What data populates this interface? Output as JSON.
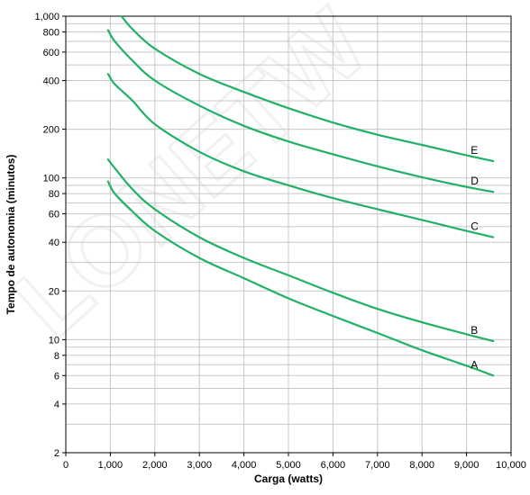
{
  "chart_data": {
    "type": "line",
    "xlabel": "Carga (watts)",
    "ylabel": "Tempo de autonomia (minutos)",
    "x_scale": "linear",
    "y_scale": "log",
    "xlim": [
      0,
      10000
    ],
    "ylim": [
      2,
      1000
    ],
    "grid": true,
    "x_ticks": [
      0,
      1000,
      2000,
      3000,
      4000,
      5000,
      6000,
      7000,
      8000,
      9000,
      10000
    ],
    "x_tick_labels": [
      "0",
      "1,000",
      "2,000",
      "3,000",
      "4,000",
      "5,000",
      "6,000",
      "7,000",
      "8,000",
      "9,000",
      "10,000"
    ],
    "y_ticks": [
      2,
      4,
      6,
      8,
      10,
      20,
      40,
      60,
      80,
      100,
      200,
      400,
      600,
      800,
      1000
    ],
    "y_tick_labels": [
      "2",
      "4",
      "6",
      "8",
      "10",
      "20",
      "40",
      "60",
      "80",
      "100",
      "200",
      "400",
      "600",
      "800",
      "1,000"
    ],
    "line_color": "#22b068",
    "series": [
      {
        "name": "A",
        "x": [
          950,
          1100,
          1500,
          2000,
          3000,
          4000,
          5000,
          6000,
          7000,
          8000,
          9000,
          9600
        ],
        "values": [
          95,
          80,
          62,
          47,
          32,
          24,
          18,
          14,
          11,
          8.6,
          6.9,
          6
        ]
      },
      {
        "name": "B",
        "x": [
          950,
          1100,
          1500,
          2000,
          3000,
          4000,
          5000,
          6000,
          7000,
          8000,
          9000,
          9600
        ],
        "values": [
          130,
          115,
          85,
          64,
          43,
          32,
          25,
          19.5,
          15.5,
          12.8,
          10.8,
          9.8
        ]
      },
      {
        "name": "C",
        "x": [
          950,
          1100,
          1500,
          2000,
          3000,
          4000,
          5000,
          6000,
          7000,
          8000,
          9000,
          9600
        ],
        "values": [
          440,
          380,
          300,
          215,
          145,
          110,
          90,
          75,
          64,
          55,
          47,
          43
        ]
      },
      {
        "name": "D",
        "x": [
          950,
          1100,
          1500,
          2000,
          3000,
          4000,
          5000,
          6000,
          7000,
          8000,
          9000,
          9600
        ],
        "values": [
          820,
          700,
          530,
          400,
          280,
          210,
          168,
          140,
          118,
          101,
          88,
          82
        ]
      },
      {
        "name": "E",
        "x": [
          1250,
          1500,
          2000,
          3000,
          4000,
          5000,
          6000,
          7000,
          8000,
          9000,
          9600
        ],
        "values": [
          1000,
          830,
          630,
          440,
          340,
          270,
          220,
          185,
          160,
          138,
          127
        ]
      }
    ]
  }
}
